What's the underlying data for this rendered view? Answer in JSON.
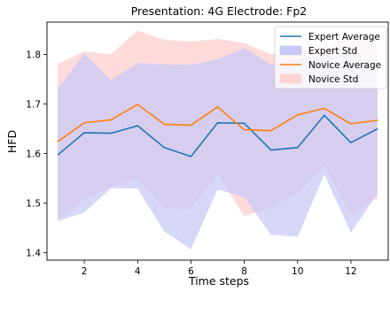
{
  "chart_data": {
    "type": "line",
    "title": "Presentation: 4G Electrode: Fp2",
    "xlabel": "Time steps",
    "ylabel": "HFD",
    "xlim": [
      0.6,
      13.4
    ],
    "ylim": [
      1.385,
      1.865
    ],
    "x": [
      1,
      2,
      3,
      4,
      5,
      6,
      7,
      8,
      9,
      10,
      11,
      12,
      13
    ],
    "xticks": [
      2,
      4,
      6,
      8,
      10,
      12
    ],
    "yticks": [
      1.4,
      1.5,
      1.6,
      1.7,
      1.8
    ],
    "ytick_labels": [
      "1.4",
      "1.5",
      "1.6",
      "1.7",
      "1.8"
    ],
    "series": [
      {
        "name": "Expert Average",
        "kind": "line",
        "color": "#1f77b4",
        "values": [
          1.597,
          1.642,
          1.641,
          1.656,
          1.612,
          1.594,
          1.662,
          1.661,
          1.607,
          1.612,
          1.677,
          1.622,
          1.65
        ]
      },
      {
        "name": "Expert Std",
        "kind": "band",
        "color": "#c9c9f5",
        "lower": [
          1.464,
          1.481,
          1.53,
          1.529,
          1.443,
          1.407,
          1.528,
          1.512,
          1.436,
          1.432,
          1.558,
          1.44,
          1.52
        ],
        "upper": [
          1.73,
          1.802,
          1.748,
          1.782,
          1.78,
          1.779,
          1.79,
          1.813,
          1.779,
          1.79,
          1.796,
          1.804,
          1.78
        ]
      },
      {
        "name": "Novice Average",
        "kind": "line",
        "color": "#ff7f0e",
        "values": [
          1.624,
          1.662,
          1.668,
          1.699,
          1.659,
          1.657,
          1.694,
          1.648,
          1.646,
          1.678,
          1.691,
          1.66,
          1.667
        ]
      },
      {
        "name": "Novice Std",
        "kind": "band",
        "color": "#fdd5d5",
        "lower": [
          1.468,
          1.508,
          1.533,
          1.549,
          1.49,
          1.489,
          1.558,
          1.474,
          1.49,
          1.52,
          1.576,
          1.478,
          1.51
        ],
        "upper": [
          1.78,
          1.806,
          1.8,
          1.848,
          1.829,
          1.826,
          1.831,
          1.823,
          1.8,
          1.81,
          1.808,
          1.84,
          1.82
        ]
      }
    ],
    "legend": {
      "placement": "top-right",
      "entries": [
        "Expert Average",
        "Expert Std",
        "Novice Average",
        "Novice Std"
      ]
    },
    "grid": false
  }
}
